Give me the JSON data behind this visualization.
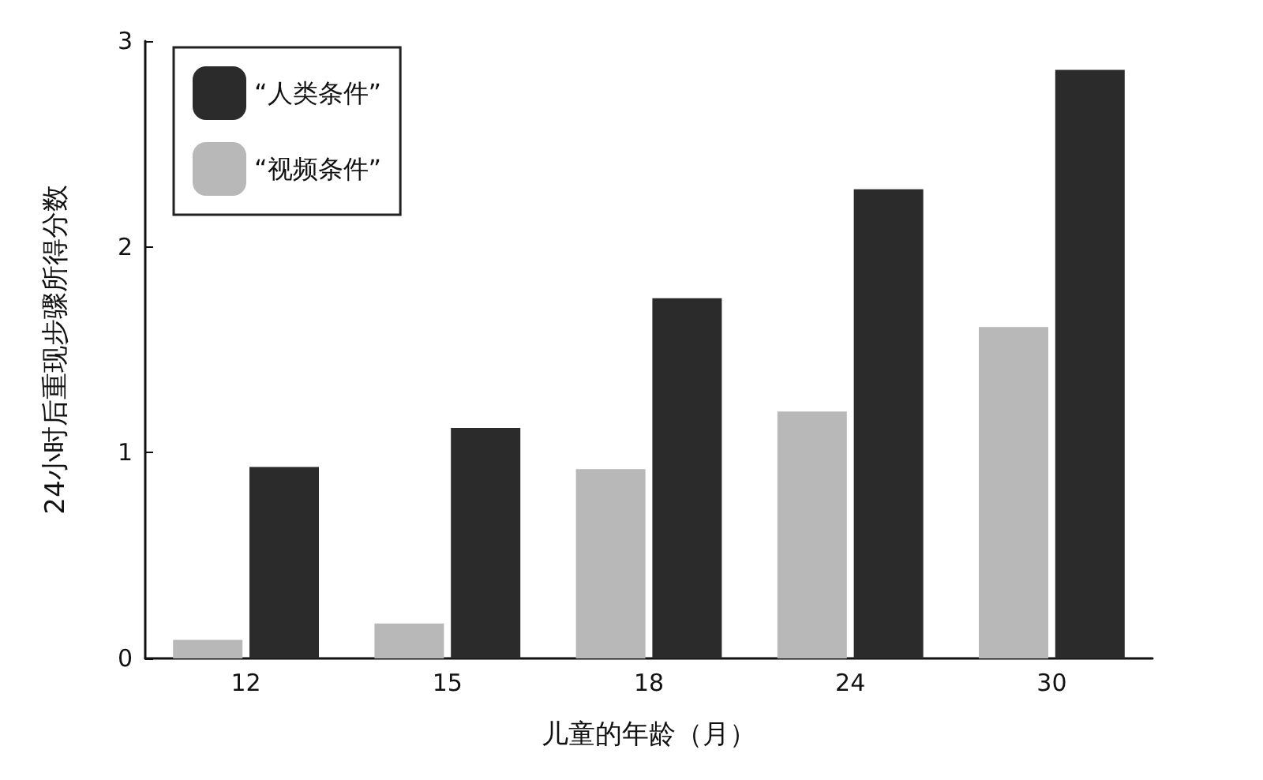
{
  "chart_data": {
    "type": "bar",
    "xlabel": "儿童的年龄（月）",
    "ylabel": "24小时后重现步骤所得分数",
    "categories": [
      "12",
      "15",
      "18",
      "24",
      "30"
    ],
    "series": [
      {
        "name": "“视频条件”",
        "color": "#b8b8b8",
        "values": [
          0.09,
          0.17,
          0.92,
          1.2,
          1.61
        ]
      },
      {
        "name": "“人类条件”",
        "color": "#2b2b2b",
        "values": [
          0.93,
          1.12,
          1.75,
          2.28,
          2.86
        ]
      }
    ],
    "ylim": [
      0,
      3
    ],
    "yticks": [
      0,
      1,
      2,
      3
    ],
    "grid": false,
    "legend": "top left"
  }
}
